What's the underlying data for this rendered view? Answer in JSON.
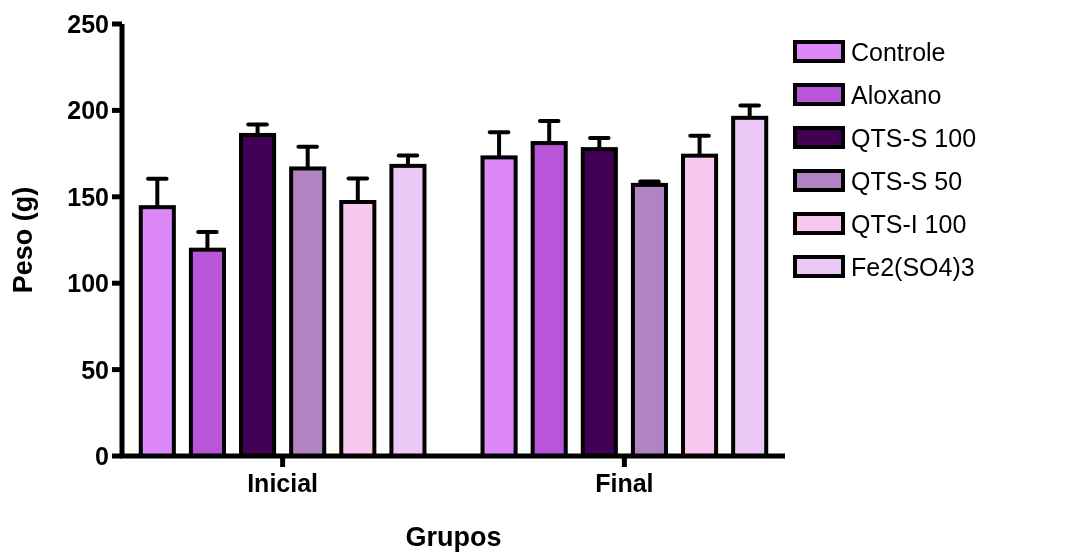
{
  "chart_data": {
    "type": "bar",
    "xlabel": "Grupos",
    "ylabel": "Peso (g)",
    "categories": [
      "Inicial",
      "Final"
    ],
    "series": [
      {
        "name": "Controle",
        "color": "#dd88f8",
        "values": [
          144,
          172.8
        ],
        "errors": [
          16.5,
          14.6
        ]
      },
      {
        "name": "Aloxano",
        "color": "#b855d8",
        "values": [
          119.4,
          181.1
        ],
        "errors": [
          10.3,
          12.8
        ]
      },
      {
        "name": "QTS-S 100",
        "color": "#420055",
        "values": [
          185.8,
          177.6
        ],
        "errors": [
          6,
          6.4
        ]
      },
      {
        "name": "QTS-S 50",
        "color": "#b283c2",
        "values": [
          166.4,
          156.9
        ],
        "errors": [
          12.6,
          2
        ]
      },
      {
        "name": "QTS-I 100",
        "color": "#f8c8ee",
        "values": [
          147,
          173.8
        ],
        "errors": [
          13.6,
          11.6
        ]
      },
      {
        "name": "Fe2(SO4)3",
        "color": "#ecc8f6",
        "values": [
          167.9,
          195.7
        ],
        "errors": [
          6,
          7.2
        ]
      }
    ],
    "ylim": [
      0,
      250
    ],
    "yticks": [
      0,
      50,
      100,
      150,
      200,
      250
    ],
    "grid": false,
    "legend": "right"
  }
}
